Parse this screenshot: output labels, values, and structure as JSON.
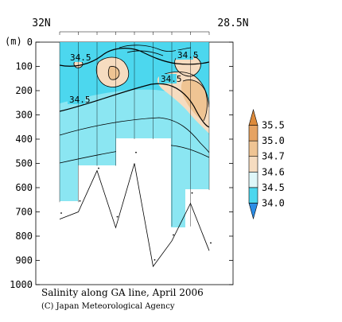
{
  "chart_data": {
    "type": "heatmap",
    "title": "Salinity along GA line, April 2006",
    "credit": "(C) Japan Meteorological Agency",
    "x_start_label": "32N",
    "x_end_label": "28.5N",
    "y_unit": "(m)",
    "y_ticks": [
      0,
      100,
      200,
      300,
      400,
      500,
      600,
      700,
      800,
      900,
      1000
    ],
    "ylim": [
      1000,
      0
    ],
    "contour_labels": [
      "34.5",
      "34.5",
      "34.5",
      "34.5"
    ],
    "colorbar_levels": [
      "34.0",
      "34.5",
      "34.6",
      "34.7",
      "35.0",
      "35.5"
    ],
    "colorbar_colors": [
      "#2b8de6",
      "#4cd7ee",
      "#dff7f9",
      "#f6dcc0",
      "#efc493",
      "#e6a363",
      "#dd8a3a"
    ],
    "bottom_profile_depth_m": [
      730,
      700,
      530,
      765,
      500,
      925,
      820,
      665,
      860
    ],
    "station_depth_m": [
      705,
      655,
      520,
      720,
      455,
      898,
      795,
      622,
      828
    ],
    "measured_max_depth_m": [
      660,
      660,
      510,
      510,
      400,
      400,
      760,
      760,
      610,
      610
    ]
  }
}
